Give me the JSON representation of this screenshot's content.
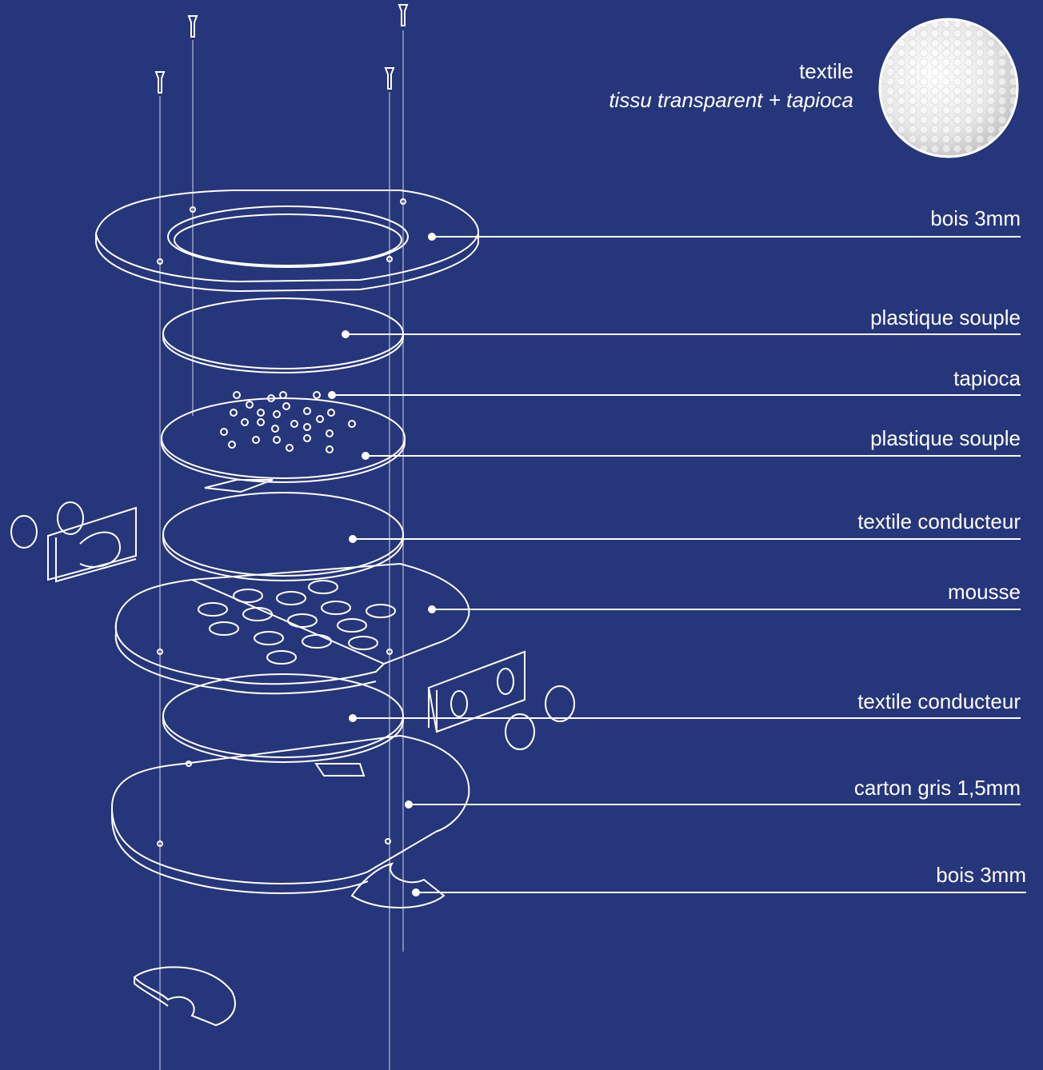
{
  "header": {
    "title": "textile",
    "subtitle": "tissu transparent + tapioca"
  },
  "layers": [
    {
      "label": "bois 3mm"
    },
    {
      "label": "plastique souple"
    },
    {
      "label": "tapioca"
    },
    {
      "label": "plastique souple"
    },
    {
      "label": "textile conducteur"
    },
    {
      "label": "mousse"
    },
    {
      "label": "textile conducteur"
    },
    {
      "label": "carton gris 1,5mm"
    },
    {
      "label": "bois 3mm"
    }
  ]
}
